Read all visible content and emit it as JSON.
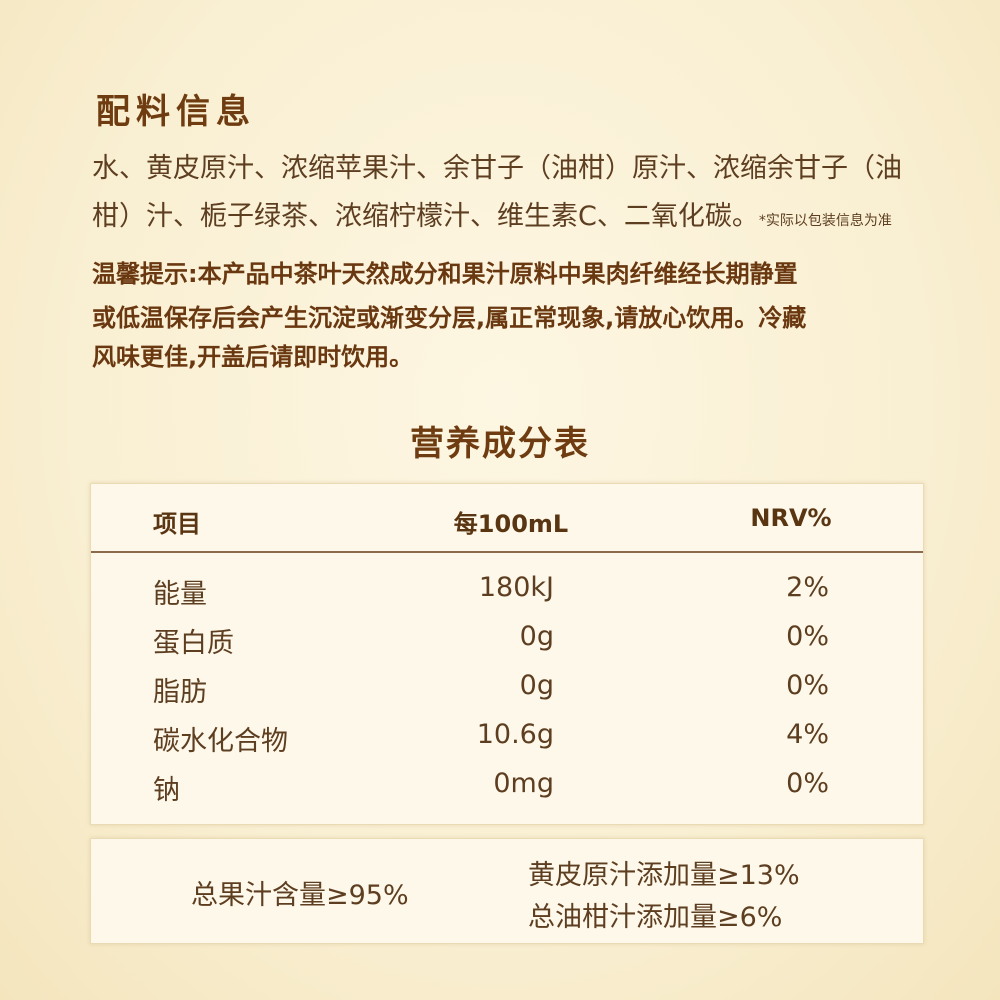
{
  "ingredients": {
    "title": "配料信息",
    "lines": [
      "水、黄皮原汁、浓缩苹果汁、余甘子（油柑）原汁、浓缩余甘子（油",
      "柑）汁、栀子绿茶、浓缩柠檬汁、维生素C、二氧化碳。"
    ],
    "footnote": "*实际以包装信息为准"
  },
  "notice": {
    "lines": [
      "温馨提示:本产品中茶叶天然成分和果汁原料中果肉纤维经长期静置",
      "或低温保存后会产生沉淀或渐变分层,属正常现象,请放心饮用。冷藏",
      "风味更佳,开盖后请即时饮用。"
    ]
  },
  "nutrition": {
    "title": "营养成分表",
    "headers": [
      "项目",
      "每100mL",
      "NRV%"
    ],
    "rows": [
      {
        "item": "能量",
        "per100ml": "180kJ",
        "nrv": "2%"
      },
      {
        "item": "蛋白质",
        "per100ml": "0g",
        "nrv": "0%"
      },
      {
        "item": "脂肪",
        "per100ml": "0g",
        "nrv": "0%"
      },
      {
        "item": "碳水化合物",
        "per100ml": "10.6g",
        "nrv": "4%"
      },
      {
        "item": "钠",
        "per100ml": "0mg",
        "nrv": "0%"
      }
    ]
  },
  "juice": {
    "total": "总果汁含量≥95%",
    "huangpi": "黄皮原汁添加量≥13%",
    "youqian": "总油柑汁添加量≥6%"
  },
  "colors": {
    "title": "#6e3c10",
    "text": "#5e3e20",
    "background": "#f9efd2"
  }
}
